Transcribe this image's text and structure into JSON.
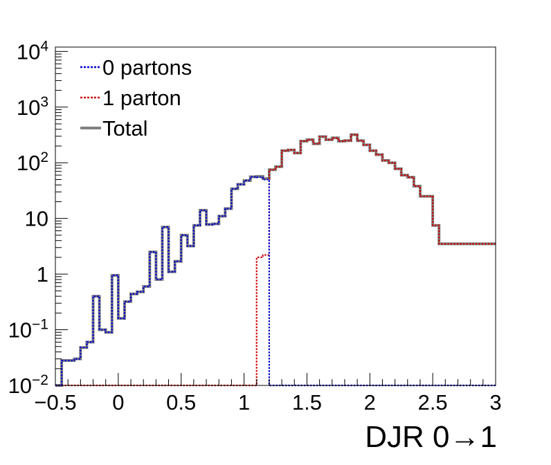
{
  "chart_data": {
    "type": "step-histogram",
    "xlabel": "DJR 0→1",
    "xlim": [
      -0.5,
      3
    ],
    "ylim": [
      0.01,
      12000
    ],
    "log_y": true,
    "legend_position": "top-left",
    "x_tick_labels": [
      "−0.5",
      "0",
      "0.5",
      "1",
      "1.5",
      "2",
      "2.5",
      "3"
    ],
    "x_tick_values": [
      -0.5,
      0,
      0.5,
      1,
      1.5,
      2,
      2.5,
      3
    ],
    "y_tick_labels": [
      {
        "value": 0.01,
        "base": "10",
        "exp": "−2"
      },
      {
        "value": 0.1,
        "base": "10",
        "exp": "−1"
      },
      {
        "value": 1,
        "base": "1",
        "exp": ""
      },
      {
        "value": 10,
        "base": "10",
        "exp": ""
      },
      {
        "value": 100,
        "base": "10",
        "exp": "2"
      },
      {
        "value": 1000,
        "base": "10",
        "exp": "3"
      },
      {
        "value": 10000,
        "base": "10",
        "exp": "4"
      }
    ],
    "bin_edges": [
      -0.5,
      -0.45,
      -0.4,
      -0.35,
      -0.3,
      -0.25,
      -0.2,
      -0.15,
      -0.1,
      -0.05,
      0,
      0.05,
      0.1,
      0.15,
      0.2,
      0.25,
      0.3,
      0.35,
      0.4,
      0.45,
      0.5,
      0.55,
      0.6,
      0.65,
      0.7,
      0.75,
      0.8,
      0.85,
      0.9,
      0.95,
      1.0,
      1.05,
      1.1,
      1.15,
      1.2,
      1.25,
      1.3,
      1.35,
      1.4,
      1.45,
      1.5,
      1.55,
      1.6,
      1.65,
      1.7,
      1.75,
      1.8,
      1.85,
      1.9,
      1.95,
      2.0,
      2.05,
      2.1,
      2.15,
      2.2,
      2.25,
      2.3,
      2.35,
      2.4,
      2.45,
      2.5,
      2.55,
      2.6,
      2.65,
      2.7,
      2.75,
      2.8,
      2.85,
      2.9,
      2.95,
      3.0
    ],
    "series": [
      {
        "name": "0 partons",
        "color": "#0000cc",
        "style": "dotted",
        "values": [
          0.01,
          0.028,
          0.028,
          0.03,
          0.048,
          0.06,
          0.4,
          0.1,
          0.09,
          0.95,
          0.16,
          0.32,
          0.44,
          0.48,
          0.6,
          2.5,
          0.8,
          7.0,
          1.1,
          1.7,
          5.0,
          3.2,
          7.5,
          14.0,
          7.8,
          8.0,
          11.0,
          15.0,
          34.0,
          41.0,
          48.0,
          56.0,
          55.0,
          50.0,
          0.01,
          0.01,
          0.01,
          0.01,
          0.01,
          0.01,
          0.01,
          0.01,
          0.01,
          0.01,
          0.01,
          0.01,
          0.01,
          0.01,
          0.01,
          0.01,
          0.01,
          0.01,
          0.01,
          0.01,
          0.01,
          0.01,
          0.01,
          0.01,
          0.01,
          0.01,
          0.01,
          0.01,
          0.01,
          0.01,
          0.01,
          0.01,
          0.01,
          0.01,
          0.01,
          0.01
        ]
      },
      {
        "name": "1 parton",
        "color": "#cc0000",
        "style": "dotted",
        "values": [
          0.01,
          0.01,
          0.01,
          0.01,
          0.01,
          0.01,
          0.01,
          0.01,
          0.01,
          0.01,
          0.01,
          0.01,
          0.01,
          0.01,
          0.01,
          0.01,
          0.01,
          0.01,
          0.01,
          0.01,
          0.01,
          0.01,
          0.01,
          0.01,
          0.01,
          0.01,
          0.01,
          0.01,
          0.01,
          0.01,
          0.01,
          0.01,
          2.0,
          2.2,
          75.0,
          85.0,
          165.0,
          170.0,
          150.0,
          245.0,
          260.0,
          220.0,
          295.0,
          260.0,
          280.0,
          245.0,
          250.0,
          320.0,
          250.0,
          210.0,
          165.0,
          140.0,
          110.0,
          100.0,
          78.0,
          60.0,
          55.0,
          38.0,
          25.0,
          25.0,
          7.5,
          3.5,
          3.5,
          3.5,
          3.5,
          3.5,
          3.5,
          3.5,
          3.5,
          3.5
        ]
      },
      {
        "name": "Total",
        "color": "#808080",
        "style": "solid",
        "values": [
          0.01,
          0.028,
          0.028,
          0.03,
          0.048,
          0.06,
          0.4,
          0.1,
          0.09,
          0.95,
          0.16,
          0.32,
          0.44,
          0.48,
          0.6,
          2.5,
          0.8,
          7.0,
          1.1,
          1.7,
          5.0,
          3.2,
          7.5,
          14.0,
          7.8,
          8.0,
          11.0,
          15.0,
          34.0,
          41.0,
          48.0,
          56.0,
          57.0,
          52.0,
          75.0,
          85.0,
          165.0,
          170.0,
          150.0,
          245.0,
          260.0,
          220.0,
          295.0,
          260.0,
          280.0,
          245.0,
          250.0,
          320.0,
          250.0,
          210.0,
          165.0,
          140.0,
          110.0,
          100.0,
          78.0,
          60.0,
          55.0,
          38.0,
          25.0,
          25.0,
          7.5,
          3.5,
          3.5,
          3.5,
          3.5,
          3.5,
          3.5,
          3.5,
          3.5,
          3.5
        ]
      }
    ]
  }
}
